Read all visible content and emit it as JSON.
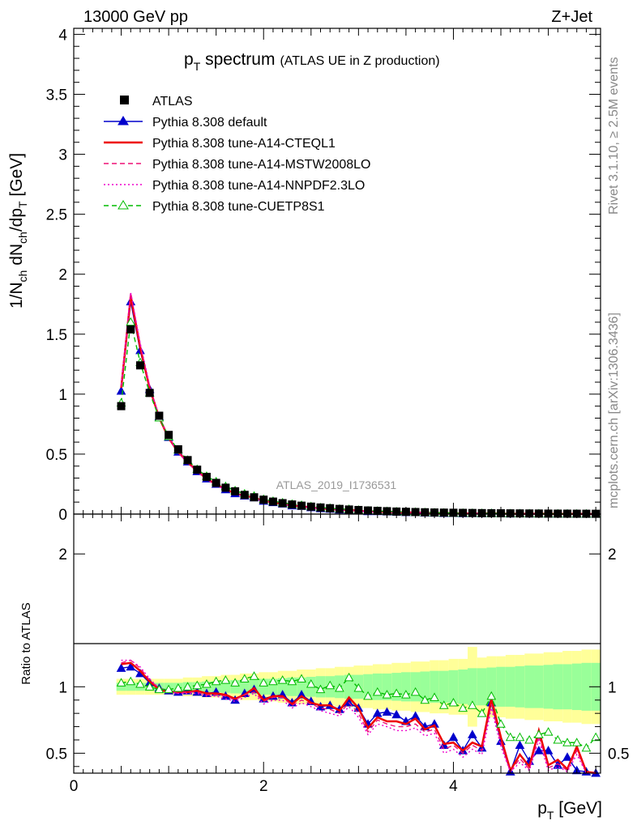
{
  "header": {
    "energy": "13000 GeV pp",
    "process": "Z+Jet"
  },
  "side_labels": {
    "rivet": "Rivet 3.1.10, ≥ 2.5M events",
    "mcplots": "mcplots.cern.ch [arXiv:1306.3436]"
  },
  "chart_data": {
    "type": "line",
    "title_main": "p",
    "title_sub": "T",
    "title_main2": " spectrum",
    "title_extra": "(ATLAS UE in Z production)",
    "analysis_id": "ATLAS_2019_I1736531",
    "xlabel": "p",
    "xlabel_sub": "T",
    "xlabel_unit": " [GeV]",
    "ylabel": "1/N",
    "ylabel_parts": [
      "1/N",
      "ch",
      " dN",
      "ch",
      "/dp",
      "T",
      " [GeV]"
    ],
    "ratio_ylabel": "Ratio to ATLAS",
    "xlim": [
      0,
      5.55
    ],
    "ylim": [
      0,
      4.05
    ],
    "ratio_ylim": [
      0.35,
      2.3
    ],
    "main_yticks": [
      "0",
      "0.5",
      "1",
      "1.5",
      "2",
      "2.5",
      "3",
      "3.5",
      "4"
    ],
    "main_ytick_values": [
      0,
      0.5,
      1,
      1.5,
      2,
      2.5,
      3,
      3.5,
      4
    ],
    "ratio_yticks": [
      "0.5",
      "1",
      "2"
    ],
    "ratio_ytick_values": [
      0.5,
      1,
      2
    ],
    "xticks": [
      "0",
      "2",
      "4"
    ],
    "xtick_values": [
      0,
      2,
      4
    ],
    "x": [
      0.5,
      0.6,
      0.7,
      0.8,
      0.9,
      1.0,
      1.1,
      1.2,
      1.3,
      1.4,
      1.5,
      1.6,
      1.7,
      1.8,
      1.9,
      2.0,
      2.1,
      2.2,
      2.3,
      2.4,
      2.5,
      2.6,
      2.7,
      2.8,
      2.9,
      3.0,
      3.1,
      3.2,
      3.3,
      3.4,
      3.5,
      3.6,
      3.7,
      3.8,
      3.9,
      4.0,
      4.1,
      4.2,
      4.3,
      4.4,
      4.5,
      4.6,
      4.7,
      4.8,
      4.9,
      5.0,
      5.1,
      5.2,
      5.3,
      5.4,
      5.5
    ],
    "atlas": [
      0.9,
      1.54,
      1.24,
      1.01,
      0.82,
      0.66,
      0.54,
      0.45,
      0.37,
      0.31,
      0.26,
      0.22,
      0.19,
      0.16,
      0.14,
      0.12,
      0.104,
      0.091,
      0.08,
      0.07,
      0.062,
      0.055,
      0.049,
      0.043,
      0.038,
      0.034,
      0.03,
      0.027,
      0.024,
      0.021,
      0.019,
      0.017,
      0.015,
      0.013,
      0.012,
      0.011,
      0.01,
      0.009,
      0.008,
      0.007,
      0.0065,
      0.006,
      0.0055,
      0.005,
      0.0045,
      0.004,
      0.0037,
      0.0034,
      0.0031,
      0.0028,
      0.0025
    ],
    "series": [
      {
        "name": "Pythia 8.308 default",
        "color": "#0000cc",
        "style": "solid",
        "marker": "triangle-filled",
        "ratio": [
          1.14,
          1.15,
          1.1,
          1.03,
          0.99,
          0.97,
          0.96,
          0.97,
          0.96,
          0.95,
          0.96,
          0.93,
          0.9,
          0.95,
          0.98,
          0.91,
          0.93,
          0.94,
          0.88,
          0.94,
          0.89,
          0.85,
          0.86,
          0.83,
          0.88,
          0.84,
          0.72,
          0.8,
          0.81,
          0.79,
          0.74,
          0.78,
          0.7,
          0.72,
          0.56,
          0.62,
          0.52,
          0.64,
          0.54,
          0.88,
          0.59,
          0.36,
          0.56,
          0.44,
          0.52,
          0.52,
          0.41,
          0.47,
          0.37,
          0.36,
          0.35
        ]
      },
      {
        "name": "Pythia 8.308 tune-A14-CTEQL1",
        "color": "#ee0000",
        "style": "solid",
        "marker": "none",
        "ratio": [
          1.17,
          1.18,
          1.12,
          1.04,
          0.98,
          0.96,
          0.96,
          0.96,
          0.97,
          0.95,
          0.95,
          0.94,
          0.91,
          0.94,
          0.99,
          0.9,
          0.93,
          0.93,
          0.87,
          0.93,
          0.88,
          0.86,
          0.86,
          0.82,
          0.92,
          0.84,
          0.69,
          0.77,
          0.74,
          0.74,
          0.72,
          0.76,
          0.68,
          0.71,
          0.57,
          0.58,
          0.52,
          0.58,
          0.55,
          0.91,
          0.62,
          0.37,
          0.49,
          0.4,
          0.67,
          0.41,
          0.45,
          0.38,
          0.55,
          0.36,
          0.35
        ]
      },
      {
        "name": "Pythia 8.308 tune-A14-MSTW2008LO",
        "color": "#ee1177",
        "style": "dashed",
        "marker": "none",
        "ratio": [
          1.18,
          1.2,
          1.14,
          1.05,
          0.99,
          0.97,
          0.95,
          0.96,
          0.96,
          0.94,
          0.94,
          0.93,
          0.9,
          0.94,
          0.96,
          0.89,
          0.92,
          0.92,
          0.86,
          0.9,
          0.87,
          0.84,
          0.83,
          0.8,
          0.88,
          0.8,
          0.66,
          0.75,
          0.72,
          0.7,
          0.7,
          0.72,
          0.66,
          0.68,
          0.53,
          0.56,
          0.5,
          0.56,
          0.52,
          0.87,
          0.58,
          0.36,
          0.46,
          0.38,
          0.63,
          0.39,
          0.42,
          0.37,
          0.52,
          0.35,
          0.35
        ]
      },
      {
        "name": "Pythia 8.308 tune-A14-NNPDF2.3LO",
        "color": "#ee00cc",
        "style": "dotted",
        "marker": "none",
        "ratio": [
          1.2,
          1.2,
          1.15,
          1.06,
          0.99,
          0.96,
          0.95,
          0.95,
          0.95,
          0.93,
          0.93,
          0.91,
          0.89,
          0.92,
          0.95,
          0.87,
          0.9,
          0.9,
          0.84,
          0.88,
          0.85,
          0.82,
          0.8,
          0.78,
          0.85,
          0.77,
          0.64,
          0.72,
          0.7,
          0.67,
          0.67,
          0.69,
          0.63,
          0.65,
          0.5,
          0.53,
          0.47,
          0.53,
          0.49,
          0.84,
          0.55,
          0.36,
          0.43,
          0.37,
          0.6,
          0.37,
          0.4,
          0.36,
          0.49,
          0.35,
          0.35
        ]
      },
      {
        "name": "Pythia 8.308 tune-CUETP8S1",
        "color": "#00bb00",
        "style": "dashed",
        "marker": "triangle-open",
        "ratio": [
          1.03,
          1.04,
          1.02,
          1.0,
          0.98,
          0.98,
          0.99,
          1.0,
          1.01,
          1.02,
          1.04,
          1.05,
          1.03,
          1.06,
          1.08,
          1.03,
          1.04,
          1.05,
          1.04,
          1.06,
          1.02,
          0.98,
          1.01,
          0.99,
          1.07,
          0.99,
          0.93,
          0.96,
          0.94,
          0.95,
          0.94,
          0.96,
          0.9,
          0.92,
          0.86,
          0.88,
          0.84,
          0.86,
          0.8,
          0.93,
          0.72,
          0.62,
          0.62,
          0.6,
          0.64,
          0.66,
          0.6,
          0.58,
          0.58,
          0.54,
          0.62
        ]
      }
    ],
    "band_stat_halfwidth": [
      0.03,
      0.03,
      0.03,
      0.03,
      0.03,
      0.03,
      0.03,
      0.035,
      0.035,
      0.04,
      0.04,
      0.045,
      0.05,
      0.05,
      0.055,
      0.06,
      0.06,
      0.065,
      0.07,
      0.07,
      0.075,
      0.08,
      0.08,
      0.085,
      0.09,
      0.09,
      0.095,
      0.1,
      0.1,
      0.105,
      0.11,
      0.11,
      0.115,
      0.12,
      0.12,
      0.125,
      0.13,
      0.14,
      0.14,
      0.145,
      0.15,
      0.15,
      0.155,
      0.16,
      0.16,
      0.165,
      0.17,
      0.17,
      0.175,
      0.18,
      0.18
    ],
    "band_total_halfwidth": [
      0.06,
      0.06,
      0.06,
      0.06,
      0.06,
      0.06,
      0.06,
      0.07,
      0.07,
      0.08,
      0.08,
      0.09,
      0.09,
      0.1,
      0.1,
      0.11,
      0.11,
      0.12,
      0.12,
      0.13,
      0.13,
      0.14,
      0.14,
      0.15,
      0.15,
      0.16,
      0.16,
      0.17,
      0.17,
      0.18,
      0.18,
      0.19,
      0.19,
      0.2,
      0.2,
      0.21,
      0.21,
      0.3,
      0.22,
      0.23,
      0.23,
      0.24,
      0.24,
      0.25,
      0.25,
      0.26,
      0.26,
      0.27,
      0.27,
      0.28,
      0.28
    ],
    "legend_data_name": "ATLAS",
    "legend_placement": "top-left"
  },
  "colors": {
    "band_stat": "#99ff99",
    "band_total": "#ffff99",
    "data": "#000000"
  }
}
